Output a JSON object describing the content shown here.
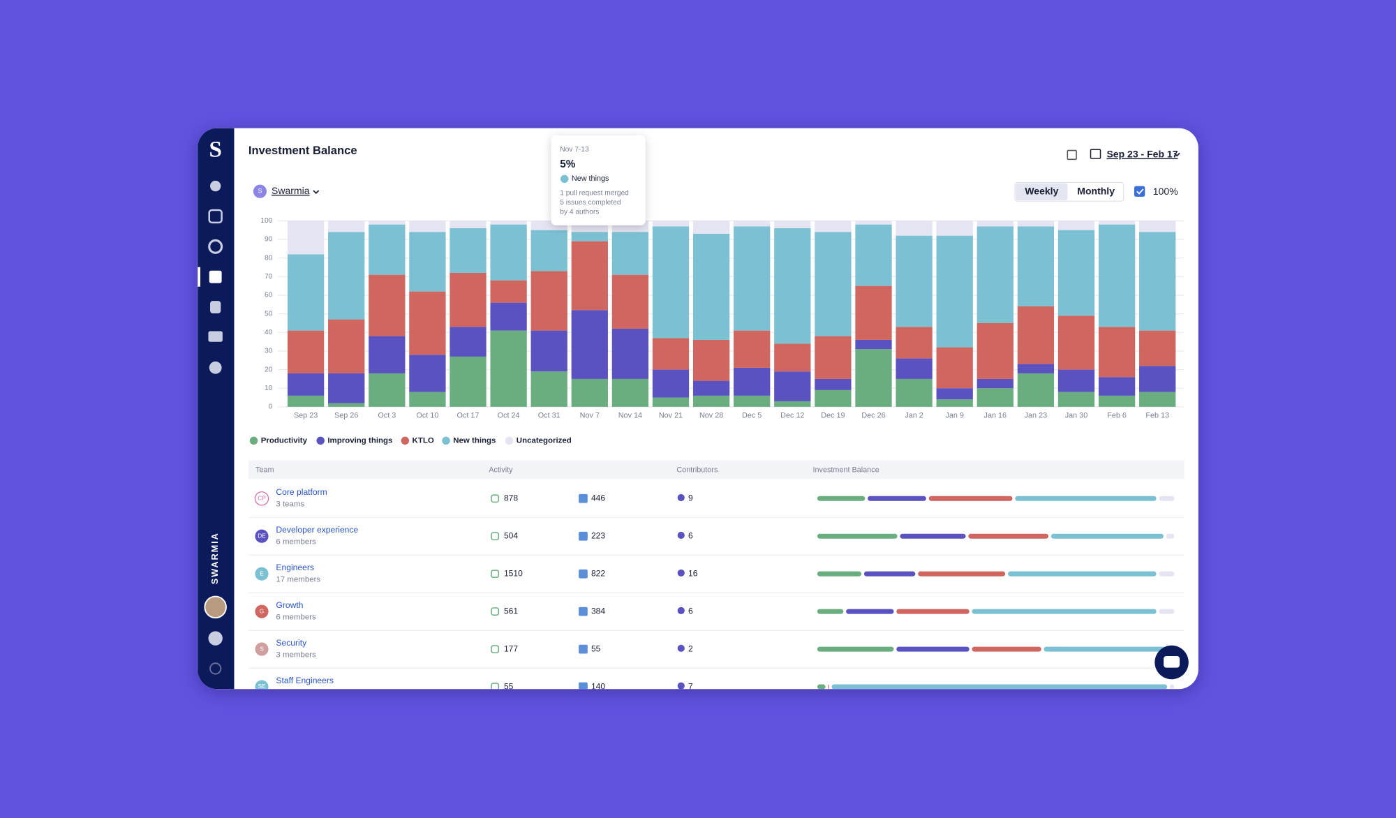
{
  "sidebar": {
    "brand": "SWARMIA"
  },
  "header": {
    "title": "Investment Balance",
    "date_range": "Sep 23 - Feb 17",
    "org_initial": "S",
    "org": "Swarmia",
    "toggle": [
      "Weekly",
      "Monthly"
    ],
    "percent_toggle": "100%"
  },
  "tooltip": {
    "period": "Nov 7-13",
    "value": "5%",
    "category": "New things",
    "lines": [
      "1 pull request merged",
      "5 issues completed",
      "by 4 authors"
    ]
  },
  "chart_data": {
    "type": "bar",
    "stacked": true,
    "categories": [
      "Sep 23",
      "Sep 26",
      "Oct 3",
      "Oct 10",
      "Oct 17",
      "Oct 24",
      "Oct 31",
      "Nov 7",
      "Nov 14",
      "Nov 21",
      "Nov 28",
      "Dec 5",
      "Dec 12",
      "Dec 19",
      "Dec 26",
      "Jan 2",
      "Jan 9",
      "Jan 16",
      "Jan 23",
      "Jan 30",
      "Feb 6",
      "Feb 13"
    ],
    "series": [
      {
        "name": "Productivity",
        "color": "#6aae80",
        "values": [
          6,
          2,
          18,
          8,
          27,
          41,
          19,
          15,
          15,
          5,
          6,
          6,
          3,
          9,
          31,
          15,
          4,
          10,
          18,
          8,
          6,
          8
        ]
      },
      {
        "name": "Improving things",
        "color": "#5a52c0",
        "values": [
          12,
          16,
          20,
          20,
          16,
          15,
          22,
          37,
          27,
          15,
          8,
          15,
          16,
          6,
          5,
          11,
          6,
          5,
          5,
          12,
          10,
          14
        ]
      },
      {
        "name": "KTLO",
        "color": "#cf6660",
        "values": [
          23,
          29,
          33,
          34,
          29,
          12,
          32,
          37,
          29,
          17,
          22,
          20,
          15,
          23,
          29,
          17,
          22,
          30,
          31,
          29,
          27,
          19
        ]
      },
      {
        "name": "New things",
        "color": "#7cc0d3",
        "values": [
          41,
          47,
          27,
          32,
          24,
          30,
          22,
          5,
          23,
          60,
          57,
          56,
          62,
          56,
          33,
          49,
          60,
          52,
          43,
          46,
          55,
          53
        ]
      },
      {
        "name": "Uncategorized",
        "color": "#e4e4f2",
        "values": [
          18,
          6,
          2,
          6,
          4,
          2,
          5,
          6,
          6,
          3,
          7,
          3,
          4,
          6,
          2,
          8,
          8,
          3,
          3,
          5,
          2,
          6
        ]
      }
    ],
    "ylim": [
      0,
      100
    ],
    "yticks": [
      0,
      10,
      20,
      30,
      40,
      50,
      60,
      70,
      80,
      90,
      100
    ],
    "grid": true
  },
  "table": {
    "columns": [
      "Team",
      "Activity",
      "Contributors",
      "Investment Balance"
    ],
    "rows": [
      {
        "initials": "CP",
        "name": "Core platform",
        "subtitle": "3 teams",
        "pull_requests": 878,
        "issues": 446,
        "contributors": 9,
        "balance": [
          14,
          17,
          24,
          40,
          5
        ]
      },
      {
        "initials": "DE",
        "name": "Developer experience",
        "subtitle": "6 members",
        "pull_requests": 504,
        "issues": 223,
        "contributors": 6,
        "balance": [
          23,
          19,
          23,
          32,
          3
        ]
      },
      {
        "initials": "E",
        "name": "Engineers",
        "subtitle": "17 members",
        "pull_requests": 1510,
        "issues": 822,
        "contributors": 16,
        "balance": [
          13,
          15,
          25,
          42,
          5
        ]
      },
      {
        "initials": "G",
        "name": "Growth",
        "subtitle": "6 members",
        "pull_requests": 561,
        "issues": 384,
        "contributors": 6,
        "balance": [
          8,
          14,
          21,
          52,
          5
        ]
      },
      {
        "initials": "S",
        "name": "Security",
        "subtitle": "3 members",
        "pull_requests": 177,
        "issues": 55,
        "contributors": 2,
        "balance": [
          22,
          21,
          20,
          35,
          2
        ]
      },
      {
        "initials": "SE",
        "name": "Staff Engineers",
        "pull_requests": 55,
        "issues": 140,
        "contributors": 7,
        "balance": [
          3,
          0,
          1,
          94,
          2
        ]
      }
    ]
  }
}
